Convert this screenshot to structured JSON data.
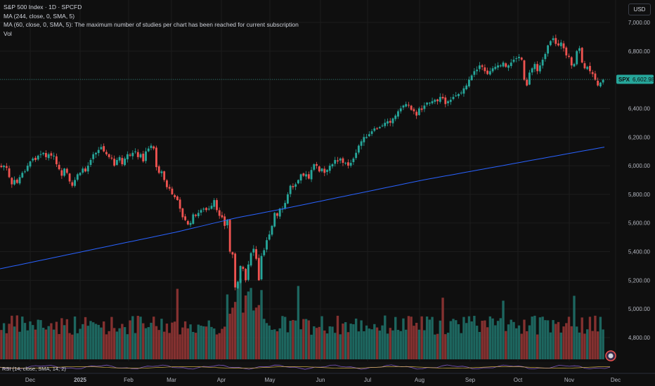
{
  "legend": {
    "symbol": "S&P 500 Index · 1D · SPCFD",
    "ma1": "MA (244, close, 0, SMA, 5)",
    "ma2": "MA (60, close, 0, SMA, 5): The maximum number of studies per chart has been reached for current subscription",
    "vol": "Vol"
  },
  "currency": "USD",
  "rsi": "RSI (14, close, SMA, 14, 2)",
  "colors": {
    "bg": "#0f0f0f",
    "up": "#26a69a",
    "down": "#ef5350",
    "ma": "#2962ff",
    "label": "#26a69a",
    "grid": "#1c1c1c"
  },
  "chart_data": {
    "type": "candlestick",
    "title": "S&P 500 Index · 1D · SPCFD",
    "ylim": [
      4700,
      7100
    ],
    "y_ticks": [
      "4,800.00",
      "5,000.00",
      "5,200.00",
      "5,400.00",
      "5,600.00",
      "5,800.00",
      "6,000.00",
      "6,200.00",
      "6,400.00",
      "6,600.00",
      "6,800.00",
      "7,000.00"
    ],
    "x_ticks": [
      "Dec",
      "2025",
      "Feb",
      "Mar",
      "Apr",
      "May",
      "Jun",
      "Jul",
      "Aug",
      "Sep",
      "Oct",
      "Nov",
      "Dec"
    ],
    "last_price": {
      "symbol": "SPX",
      "value": "6,602.98",
      "raw": 6602.98
    },
    "closes": [
      5990,
      6000,
      5985,
      5920,
      5870,
      5900,
      5880,
      5920,
      5950,
      5960,
      6000,
      6030,
      6050,
      6040,
      6070,
      6080,
      6090,
      6060,
      6080,
      6070,
      6070,
      6010,
      5975,
      5930,
      5980,
      5950,
      5890,
      5860,
      5900,
      5940,
      5950,
      5980,
      5960,
      6000,
      6040,
      6080,
      6090,
      6110,
      6130,
      6100,
      6080,
      6060,
      6050,
      6000,
      6040,
      6060,
      6010,
      6050,
      6080,
      6070,
      6090,
      6100,
      6060,
      6080,
      6030,
      6100,
      6120,
      6140,
      6120,
      5990,
      5950,
      5960,
      5900,
      5850,
      5840,
      5800,
      5780,
      5760,
      5700,
      5640,
      5620,
      5590,
      5600,
      5660,
      5650,
      5670,
      5690,
      5700,
      5690,
      5700,
      5720,
      5760,
      5690,
      5650,
      5640,
      5580,
      5620,
      5400,
      5380,
      5150,
      5190,
      5300,
      5280,
      5200,
      5310,
      5390,
      5420,
      5350,
      5200,
      5370,
      5410,
      5480,
      5520,
      5580,
      5670,
      5650,
      5700,
      5700,
      5740,
      5800,
      5860,
      5850,
      5870,
      5900,
      5940,
      5930,
      5940,
      5910,
      5970,
      6010,
      6000,
      5960,
      5980,
      5950,
      5970,
      6000,
      6010,
      6040,
      6030,
      6050,
      6020,
      6020,
      6000,
      6020,
      6050,
      6090,
      6140,
      6170,
      6200,
      6200,
      6220,
      6240,
      6260,
      6260,
      6270,
      6280,
      6300,
      6310,
      6300,
      6330,
      6350,
      6380,
      6400,
      6420,
      6430,
      6420,
      6390,
      6380,
      6350,
      6400,
      6390,
      6420,
      6440,
      6440,
      6450,
      6460,
      6450,
      6480,
      6470,
      6430,
      6450,
      6460,
      6480,
      6490,
      6500,
      6510,
      6540,
      6560,
      6600,
      6630,
      6660,
      6670,
      6700,
      6690,
      6660,
      6640,
      6660,
      6680,
      6690,
      6700,
      6700,
      6720,
      6690,
      6700,
      6720,
      6740,
      6750,
      6760,
      6740,
      6600,
      6560,
      6650,
      6680,
      6710,
      6660,
      6700,
      6740,
      6780,
      6840,
      6870,
      6890,
      6850,
      6840,
      6860,
      6820,
      6770,
      6760,
      6700,
      6710,
      6800,
      6820,
      6720,
      6680,
      6690,
      6660,
      6640,
      6600,
      6560,
      6580,
      6600
    ],
    "ma_series": {
      "name": "MA (244, close, 0, SMA, 5)",
      "values": [
        5280,
        5535,
        5635,
        5700,
        5900,
        6130
      ],
      "at_fraction": [
        0,
        0.29,
        0.39,
        0.47,
        0.7,
        1
      ]
    }
  }
}
